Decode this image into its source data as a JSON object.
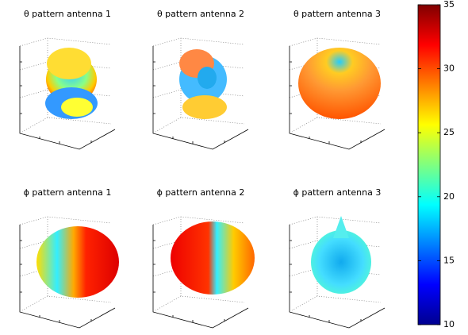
{
  "chart_data": [
    {
      "type": "surface3d",
      "title": "θ pattern antenna 1"
    },
    {
      "type": "surface3d",
      "title": "θ pattern antenna 2"
    },
    {
      "type": "surface3d",
      "title": "θ pattern antenna 3"
    },
    {
      "type": "surface3d",
      "title": "ϕ pattern antenna 1"
    },
    {
      "type": "surface3d",
      "title": "ϕ pattern antenna 2"
    },
    {
      "type": "surface3d",
      "title": "ϕ pattern antenna 3"
    }
  ],
  "colorbar": {
    "type": "colorbar",
    "colormap": "jet",
    "clim": [
      10,
      35
    ],
    "ticks": [
      10,
      15,
      20,
      25,
      30,
      35
    ]
  }
}
